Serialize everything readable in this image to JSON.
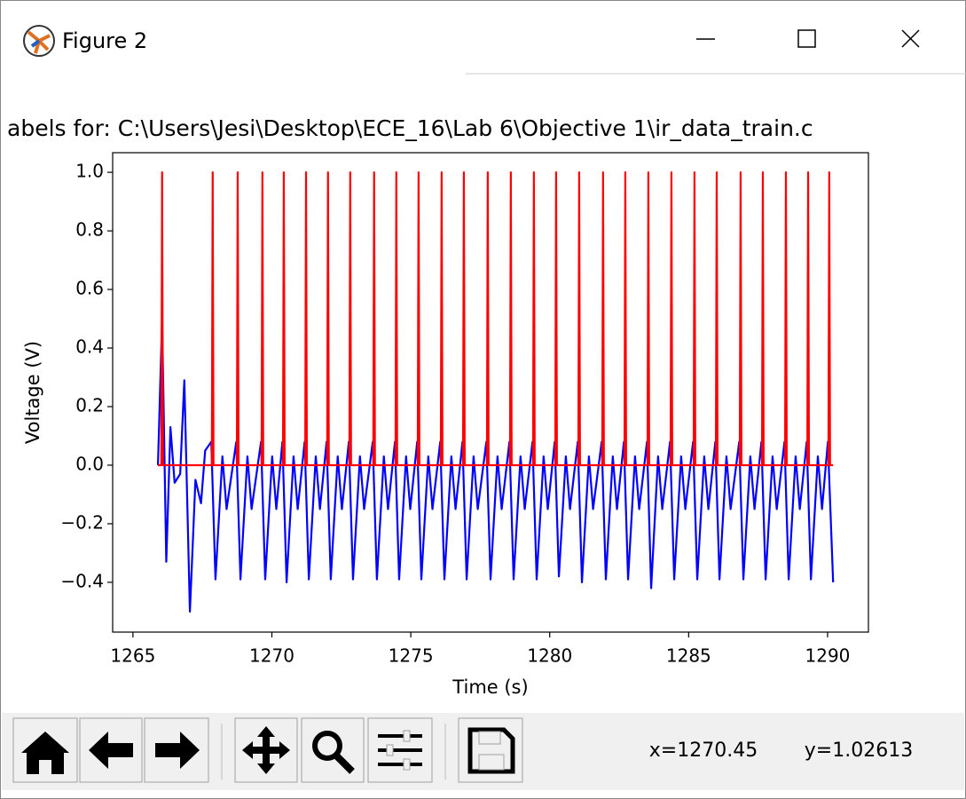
{
  "window": {
    "title": "Figure 2"
  },
  "toolbar": {
    "x_coord": "x=1270.45",
    "y_coord": "y=1.02613"
  },
  "chart_data": {
    "type": "line",
    "title": "abels for: C:\\Users\\Jesi\\Desktop\\ECE_16\\Lab 6\\Objective 1\\ir_data_train.c",
    "x_label": "Time (s)",
    "y_label": "Voltage (V)",
    "xlim": [
      1264.27,
      1291.47
    ],
    "ylim": [
      -0.57,
      1.067
    ],
    "xticks": [
      1265,
      1270,
      1275,
      1280,
      1285,
      1290
    ],
    "yticks": [
      {
        "value": -0.4,
        "label": "−0.4"
      },
      {
        "value": -0.2,
        "label": "−0.2"
      },
      {
        "value": 0,
        "label": "0.0"
      },
      0.2,
      0.4,
      0.6,
      0.8,
      {
        "value": 1,
        "label": "1.0"
      }
    ],
    "grid": false,
    "series": [
      {
        "color": "#0000ff",
        "x": [
          1265.9,
          1266.05,
          1266.2,
          1266.35,
          1266.5,
          1266.7,
          1266.85,
          1267.05,
          1267.25,
          1267.45,
          1267.6,
          1267.82,
          1267.97,
          1268.22,
          1268.37,
          1268.72,
          1268.87,
          1269.12,
          1269.27,
          1269.61,
          1269.76,
          1270.01,
          1270.16,
          1270.38,
          1270.53,
          1270.78,
          1270.93,
          1271.18,
          1271.33,
          1271.58,
          1271.73,
          1271.97,
          1272.12,
          1272.37,
          1272.52,
          1272.77,
          1272.92,
          1273.17,
          1273.32,
          1273.63,
          1273.78,
          1274.03,
          1274.18,
          1274.43,
          1274.58,
          1274.83,
          1274.98,
          1275.23,
          1275.38,
          1275.63,
          1275.78,
          1276.06,
          1276.21,
          1276.46,
          1276.61,
          1276.86,
          1277.01,
          1277.26,
          1277.41,
          1277.72,
          1277.87,
          1278.12,
          1278.27,
          1278.55,
          1278.7,
          1278.95,
          1279.1,
          1279.38,
          1279.53,
          1279.78,
          1279.93,
          1280.18,
          1280.33,
          1280.58,
          1280.73,
          1281.01,
          1281.16,
          1281.41,
          1281.56,
          1281.87,
          1282.02,
          1282.27,
          1282.42,
          1282.67,
          1282.82,
          1283.07,
          1283.22,
          1283.5,
          1283.65,
          1283.9,
          1284.05,
          1284.33,
          1284.48,
          1284.73,
          1284.88,
          1285.16,
          1285.31,
          1285.56,
          1285.71,
          1285.96,
          1286.11,
          1286.36,
          1286.51,
          1286.82,
          1286.97,
          1287.22,
          1287.37,
          1287.62,
          1287.77,
          1288.02,
          1288.17,
          1288.45,
          1288.6,
          1288.85,
          1289.0,
          1289.25,
          1289.4,
          1289.65,
          1289.8,
          1290.01,
          1290.2
        ],
        "values": [
          0,
          0.5,
          -0.33,
          0.13,
          -0.06,
          -0.03,
          0.29,
          -0.5,
          -0.05,
          -0.13,
          0.05,
          0.08,
          -0.39,
          0.03,
          -0.15,
          0.08,
          -0.39,
          0.03,
          -0.15,
          0.08,
          -0.39,
          0.03,
          -0.15,
          0.08,
          -0.4,
          0.03,
          -0.15,
          0.08,
          -0.39,
          0.03,
          -0.15,
          0.08,
          -0.39,
          0.03,
          -0.15,
          0.08,
          -0.39,
          0.03,
          -0.15,
          0.08,
          -0.39,
          0.03,
          -0.15,
          0.08,
          -0.39,
          0.03,
          -0.15,
          0.08,
          -0.39,
          0.03,
          -0.15,
          0.08,
          -0.39,
          0.03,
          -0.15,
          0.08,
          -0.39,
          0.03,
          -0.15,
          0.08,
          -0.39,
          0.03,
          -0.15,
          0.08,
          -0.39,
          0.03,
          -0.15,
          0.08,
          -0.39,
          0.03,
          -0.15,
          0.08,
          -0.38,
          0.03,
          -0.15,
          0.08,
          -0.4,
          0.03,
          -0.15,
          0.08,
          -0.39,
          0.03,
          -0.15,
          0.08,
          -0.39,
          0.03,
          -0.15,
          0.08,
          -0.42,
          0.03,
          -0.15,
          0.08,
          -0.39,
          0.03,
          -0.15,
          0.08,
          -0.39,
          0.03,
          -0.15,
          0.08,
          -0.39,
          0.03,
          -0.15,
          0.08,
          -0.39,
          0.03,
          -0.15,
          0.08,
          -0.39,
          0.03,
          -0.15,
          0.08,
          -0.39,
          0.03,
          -0.15,
          0.08,
          -0.39,
          0.03,
          -0.15,
          0.08,
          -0.4
        ]
      },
      {
        "color": "#ff0000",
        "x": [
          1265.9,
          1266.02,
          1266.05,
          1266.08,
          1267.84,
          1267.87,
          1267.9,
          1268.74,
          1268.77,
          1268.8,
          1269.63,
          1269.66,
          1269.69,
          1270.4,
          1270.43,
          1270.46,
          1271.2,
          1271.23,
          1271.26,
          1271.99,
          1272.02,
          1272.05,
          1272.79,
          1272.82,
          1272.85,
          1273.65,
          1273.68,
          1273.71,
          1274.45,
          1274.48,
          1274.51,
          1275.25,
          1275.28,
          1275.31,
          1276.08,
          1276.11,
          1276.14,
          1276.88,
          1276.91,
          1276.94,
          1277.74,
          1277.77,
          1277.8,
          1278.57,
          1278.6,
          1278.63,
          1279.4,
          1279.43,
          1279.46,
          1280.2,
          1280.23,
          1280.26,
          1281.03,
          1281.06,
          1281.09,
          1281.89,
          1281.92,
          1281.95,
          1282.69,
          1282.72,
          1282.75,
          1283.52,
          1283.55,
          1283.58,
          1284.35,
          1284.38,
          1284.41,
          1285.18,
          1285.21,
          1285.24,
          1285.98,
          1286.01,
          1286.04,
          1286.84,
          1286.87,
          1286.9,
          1287.64,
          1287.67,
          1287.7,
          1288.47,
          1288.5,
          1288.53,
          1289.27,
          1289.3,
          1289.33,
          1290.03,
          1290.06,
          1290.09,
          1290.2
        ],
        "values": [
          0,
          0,
          1,
          0,
          0,
          1,
          0,
          0,
          1,
          0,
          0,
          1,
          0,
          0,
          1,
          0,
          0,
          1,
          0,
          0,
          1,
          0,
          0,
          1,
          0,
          0,
          1,
          0,
          0,
          1,
          0,
          0,
          1,
          0,
          0,
          1,
          0,
          0,
          1,
          0,
          0,
          1,
          0,
          0,
          1,
          0,
          0,
          1,
          0,
          0,
          1,
          0,
          0,
          1,
          0,
          0,
          1,
          0,
          0,
          1,
          0,
          0,
          1,
          0,
          0,
          1,
          0,
          0,
          1,
          0,
          0,
          1,
          0,
          0,
          1,
          0,
          0,
          1,
          0,
          0,
          1,
          0,
          0,
          1,
          0,
          0,
          1,
          0,
          0
        ]
      }
    ]
  }
}
